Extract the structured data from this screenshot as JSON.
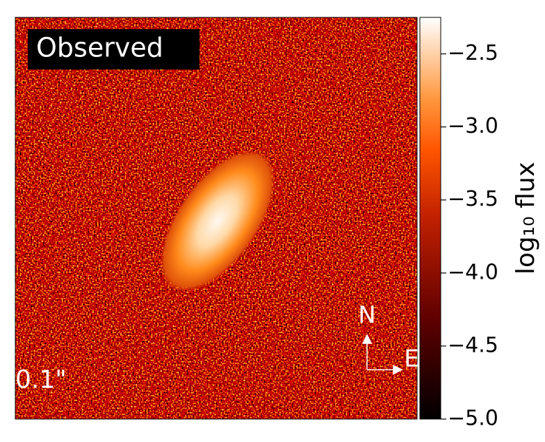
{
  "chart_data": {
    "type": "image",
    "colormap": "gist_heat",
    "panel_label": "Observed",
    "scale_label": "0.1\"",
    "compass": {
      "north": "N",
      "east": "E"
    },
    "colorbar": {
      "label": "log₁₀ flux",
      "lim": [
        -5.0,
        -2.25
      ],
      "ticks": [
        {
          "value": -2.5,
          "label": "−2.5"
        },
        {
          "value": -3.0,
          "label": "−3.0"
        },
        {
          "value": -3.5,
          "label": "−3.5"
        },
        {
          "value": -4.0,
          "label": "−4.0"
        },
        {
          "value": -4.5,
          "label": "−4.5"
        },
        {
          "value": -5.0,
          "label": "−5.0"
        }
      ]
    }
  }
}
